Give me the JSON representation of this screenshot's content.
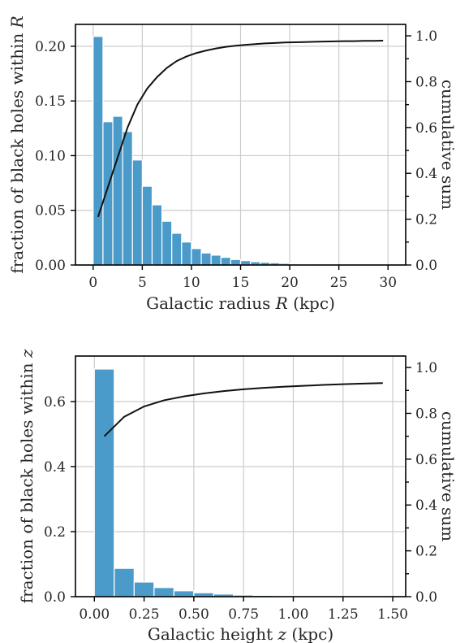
{
  "colors": {
    "bar": "#4a9bc9",
    "line": "#111111",
    "grid": "#cccccc"
  },
  "chart_data": [
    {
      "type": "bar",
      "xlabel_pre": "Galactic radius ",
      "xlabel_var": "R",
      "xlabel_post": " (kpc)",
      "ylabel_pre": "fraction of black holes within ",
      "ylabel_var": "R",
      "y2label": "cumulative sum",
      "xlim": [
        -1.8,
        31.8
      ],
      "ylim": [
        0,
        0.22
      ],
      "y2lim": [
        0,
        1.05
      ],
      "xticks": [
        0,
        5,
        10,
        15,
        20,
        25,
        30
      ],
      "xtick_labels": [
        "0",
        "5",
        "10",
        "15",
        "20",
        "25",
        "30"
      ],
      "yticks": [
        0,
        0.05,
        0.1,
        0.15,
        0.2
      ],
      "ytick_labels": [
        "0.00",
        "0.05",
        "0.10",
        "0.15",
        "0.20"
      ],
      "y2ticks": [
        0,
        0.2,
        0.4,
        0.6,
        0.8,
        1.0
      ],
      "y2tick_labels": [
        "0.0",
        "0.2",
        "0.4",
        "0.6",
        "0.8",
        "1.0"
      ],
      "y2minor": [
        0.1,
        0.3,
        0.5,
        0.7,
        0.9
      ],
      "bin_width": 1.0,
      "bin_left": [
        0,
        1,
        2,
        3,
        4,
        5,
        6,
        7,
        8,
        9,
        10,
        11,
        12,
        13,
        14,
        15,
        16,
        17,
        18,
        19,
        20,
        21
      ],
      "values": [
        0.209,
        0.131,
        0.136,
        0.122,
        0.096,
        0.072,
        0.055,
        0.04,
        0.029,
        0.021,
        0.015,
        0.011,
        0.009,
        0.007,
        0.005,
        0.004,
        0.003,
        0.0025,
        0.002,
        0.0015,
        0.001,
        0.0006
      ],
      "cum_x": [
        0.5,
        1.5,
        2.5,
        3.5,
        4.5,
        5.5,
        6.5,
        7.5,
        8.5,
        9.5,
        10.5,
        11.5,
        12.5,
        13.5,
        14.5,
        15.5,
        16.5,
        17.5,
        18.5,
        19.5,
        20.5,
        21.5,
        22.5,
        23.5,
        24.5,
        25.5,
        26.5,
        27.5,
        28.5,
        29.5
      ],
      "cum_y": [
        0.21,
        0.34,
        0.47,
        0.6,
        0.7,
        0.77,
        0.82,
        0.86,
        0.89,
        0.91,
        0.925,
        0.936,
        0.945,
        0.952,
        0.957,
        0.961,
        0.964,
        0.967,
        0.969,
        0.971,
        0.972,
        0.973,
        0.974,
        0.975,
        0.976,
        0.977,
        0.977,
        0.978,
        0.978,
        0.979
      ]
    },
    {
      "type": "bar",
      "xlabel_pre": "Galactic height ",
      "xlabel_var": "z",
      "xlabel_post": " (kpc)",
      "ylabel_pre": "fraction of black holes within ",
      "ylabel_var": "z",
      "y2label": "cumulative sum",
      "xlim": [
        -0.095,
        1.565
      ],
      "ylim": [
        0,
        0.74
      ],
      "y2lim": [
        0,
        1.05
      ],
      "xticks": [
        0,
        0.25,
        0.5,
        0.75,
        1.0,
        1.25,
        1.5
      ],
      "xtick_labels": [
        "0.00",
        "0.25",
        "0.50",
        "0.75",
        "1.00",
        "1.25",
        "1.50"
      ],
      "yticks": [
        0,
        0.2,
        0.4,
        0.6
      ],
      "ytick_labels": [
        "0.0",
        "0.2",
        "0.4",
        "0.6"
      ],
      "y2ticks": [
        0,
        0.2,
        0.4,
        0.6,
        0.8,
        1.0
      ],
      "y2tick_labels": [
        "0.0",
        "0.2",
        "0.4",
        "0.6",
        "0.8",
        "1.0"
      ],
      "y2minor": [
        0.1,
        0.3,
        0.5,
        0.7,
        0.9
      ],
      "bin_width": 0.1,
      "bin_left": [
        0,
        0.1,
        0.2,
        0.3,
        0.4,
        0.5,
        0.6,
        0.7,
        0.8,
        0.9,
        1.0,
        1.1,
        1.2,
        1.3,
        1.4
      ],
      "values": [
        0.7,
        0.087,
        0.045,
        0.028,
        0.018,
        0.012,
        0.008,
        0.005,
        0.004,
        0.003,
        0.002,
        0.0015,
        0.001,
        0.0008,
        0.0005
      ],
      "cum_x": [
        0.05,
        0.15,
        0.25,
        0.35,
        0.45,
        0.55,
        0.65,
        0.75,
        0.85,
        0.95,
        1.05,
        1.15,
        1.25,
        1.35,
        1.45
      ],
      "cum_y": [
        0.7,
        0.785,
        0.83,
        0.857,
        0.874,
        0.887,
        0.897,
        0.905,
        0.911,
        0.916,
        0.92,
        0.924,
        0.927,
        0.93,
        0.932
      ]
    }
  ]
}
